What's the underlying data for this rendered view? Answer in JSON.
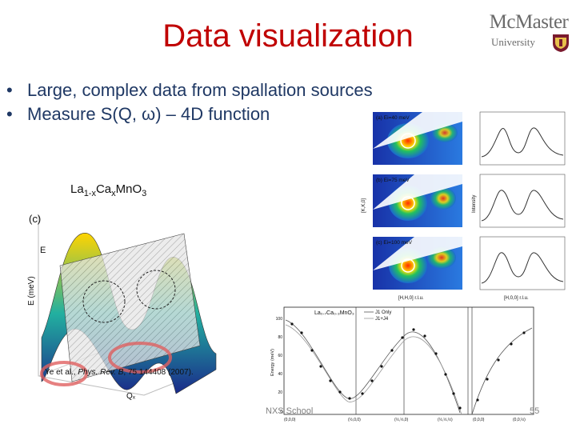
{
  "slide": {
    "title": "Data visualization",
    "logo": {
      "name": "McMaster",
      "sub": "University"
    },
    "bullets": [
      {
        "bullet": "•",
        "text": "Large, complex data from spallation sources"
      },
      {
        "bullet": "•",
        "text": "Measure S(Q, ω) – 4D function"
      }
    ],
    "formula": {
      "p1": "La",
      "s1": "1-x",
      "p2": "Ca",
      "s2": "x",
      "p3": "MnO",
      "s3": "3"
    },
    "citation": {
      "authors": "Ye et al., ",
      "journal": "Phys. Rev. B",
      "rest": ", 75 144408 (2007)."
    },
    "footer": "NXS School",
    "page_number": "55"
  },
  "figure_3d": {
    "panel_label": "(c)",
    "e_label": "E",
    "ylabel": "E (meV)",
    "xlabel": "Qₓ",
    "colors": {
      "high": "#ffd400",
      "mid": "#22b0a0",
      "low": "#1a2a8a"
    }
  },
  "figure_maps": {
    "panels": [
      {
        "label": "(a) Ei=40 meV"
      },
      {
        "label": "(b) Ei=75 meV"
      },
      {
        "label": "(c) Ei=100 meV"
      }
    ],
    "map_xlabel": "[H,H,0] r.l.u.",
    "map_ylabel": "[K,K,0]",
    "cut_xlabel": "[H,0,0] r.l.u.",
    "cut_ylabel": "Intensity"
  },
  "figure_dispersion": {
    "legend_title": "La₀.₇Ca₀.₃MnO₃",
    "legend_items": [
      "J1 Only",
      "J1+J4"
    ],
    "ylabel": "Energy (meV)",
    "yticks": [
      "100",
      "80",
      "60",
      "40",
      "20",
      "0"
    ],
    "xticks": [
      "(0,0,0)",
      "(½,0,0)",
      "(½,½,0)",
      "(½,½,½)",
      "(0,0,0)",
      "(0,0,½)"
    ]
  }
}
